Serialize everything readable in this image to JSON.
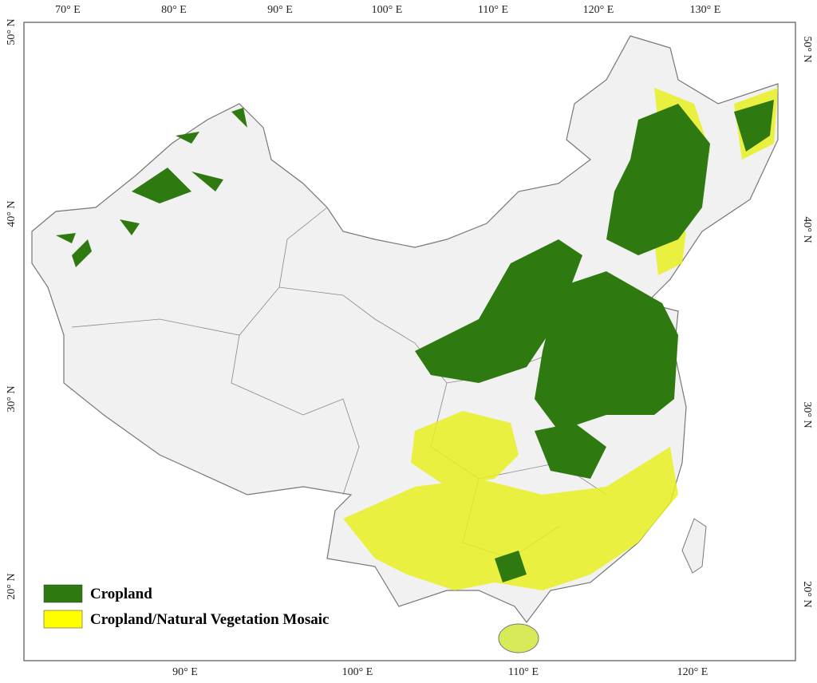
{
  "map": {
    "top_ticks": [
      "70° E",
      "80° E",
      "90° E",
      "100° E",
      "110° E",
      "120° E",
      "130° E"
    ],
    "bottom_ticks": [
      "90° E",
      "100° E",
      "110° E",
      "120° E"
    ],
    "left_ticks": [
      "50° N",
      "40° N",
      "30° N",
      "20° N"
    ],
    "right_ticks": [
      "50° N",
      "40° N",
      "30° N",
      "20° N"
    ],
    "legend": [
      "Cropland",
      "Cropland/Natural Vegetation Mosaic"
    ]
  }
}
